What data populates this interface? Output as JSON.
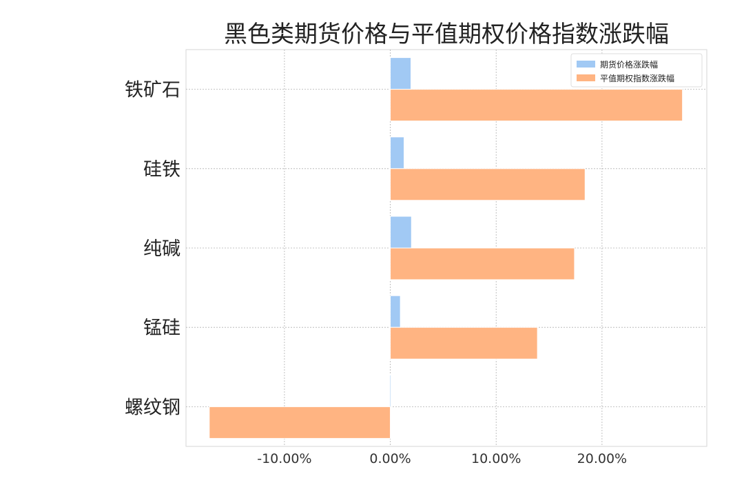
{
  "chart_data": {
    "type": "bar",
    "orientation": "horizontal",
    "title": "黑色类期货价格与平值期权价格指数涨跌幅",
    "xlabel": "",
    "ylabel": "",
    "categories": [
      "铁矿石",
      "硅铁",
      "纯碱",
      "锰硅",
      "螺纹钢"
    ],
    "series": [
      {
        "name": "期货价格涨跌幅",
        "color": "#a1c9f4",
        "values": [
          1.95,
          1.3,
          2.0,
          0.95,
          -0.05
        ]
      },
      {
        "name": "平值期权指数涨跌幅",
        "color": "#ffb482",
        "values": [
          27.6,
          18.4,
          17.4,
          13.9,
          -17.1
        ]
      }
    ],
    "xlim": [
      -19.3,
      29.9
    ],
    "xticks": [
      -10,
      0,
      10,
      20
    ],
    "xtick_labels": [
      "-10.00%",
      "0.00%",
      "10.00%",
      "20.00%"
    ],
    "grid": true,
    "legend_position": "top-right"
  }
}
